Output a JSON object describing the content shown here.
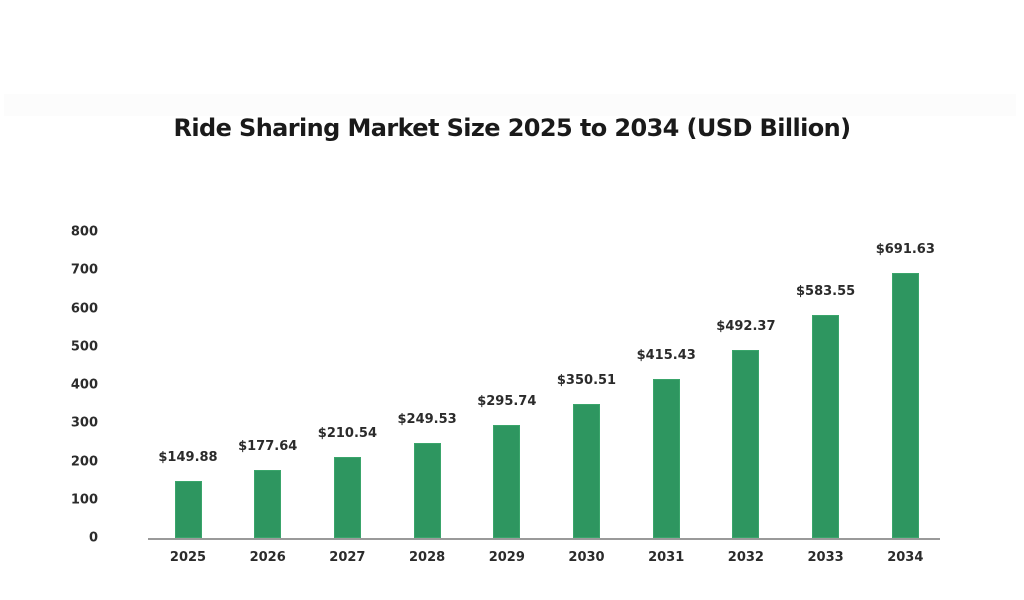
{
  "chart_data": {
    "type": "bar",
    "title": "Ride Sharing Market Size 2025 to 2034 (USD Billion)",
    "xlabel": "",
    "ylabel": "",
    "categories": [
      "2025",
      "2026",
      "2027",
      "2028",
      "2029",
      "2030",
      "2031",
      "2032",
      "2033",
      "2034"
    ],
    "values": [
      149.88,
      177.64,
      210.54,
      249.53,
      295.74,
      350.51,
      415.43,
      492.37,
      583.55,
      691.63
    ],
    "data_labels": [
      "$149.88",
      "$177.64",
      "$210.54",
      "$249.53",
      "$295.74",
      "$350.51",
      "$415.43",
      "$492.37",
      "$583.55",
      "$691.63"
    ],
    "yticks": [
      "0",
      "100",
      "200",
      "300",
      "400",
      "500",
      "600",
      "700",
      "800"
    ],
    "ylim": [
      0,
      800
    ],
    "grid": false,
    "legend": null,
    "bar_color": "#2e9660"
  }
}
